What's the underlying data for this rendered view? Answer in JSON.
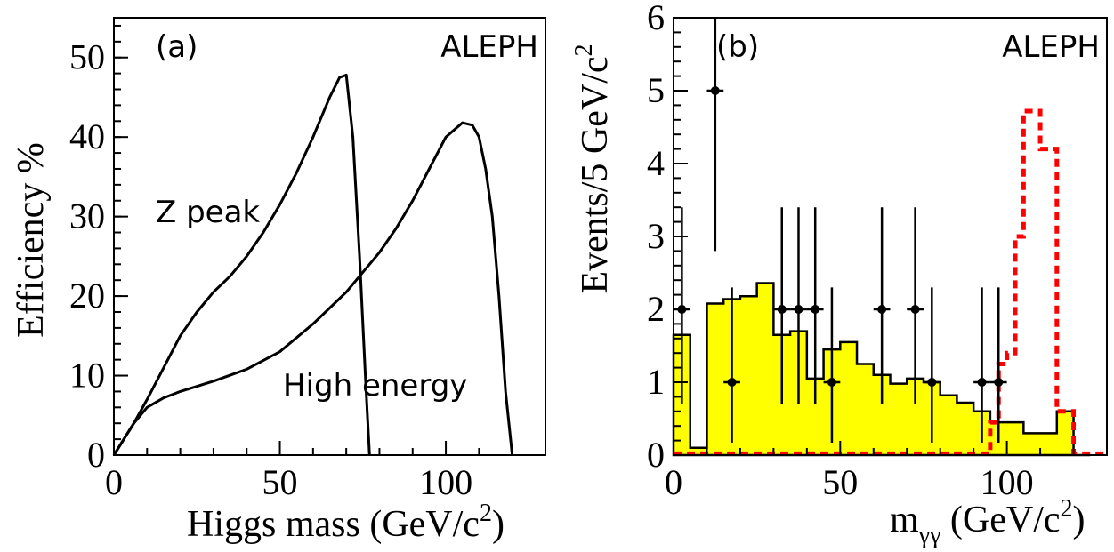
{
  "chart_data": [
    {
      "panel": "(a)",
      "type": "line",
      "brand": "ALEPH",
      "xlabel": "Higgs mass (GeV/c",
      "xlabel_sup": "2",
      "xlabel_close": ")",
      "ylabel": "Efficiency %",
      "xlim": [
        0,
        130
      ],
      "ylim": [
        0,
        55
      ],
      "xticks": [
        0,
        50,
        100
      ],
      "xtick_labels": [
        "0",
        "50",
        "100"
      ],
      "yticks": [
        0,
        10,
        20,
        30,
        40,
        50
      ],
      "ytick_labels": [
        "0",
        "10",
        "20",
        "30",
        "40",
        "50"
      ],
      "grid": false,
      "series": [
        {
          "name": "Z peak",
          "color": "#000000",
          "x": [
            0,
            3,
            6,
            10,
            15,
            20,
            25,
            30,
            35,
            40,
            45,
            50,
            55,
            60,
            65,
            68,
            70,
            72,
            74,
            76,
            77
          ],
          "y": [
            0,
            2,
            4,
            7,
            11,
            15,
            18,
            20.5,
            22.5,
            25,
            28,
            31.5,
            35.5,
            40,
            45,
            47.5,
            47.8,
            40,
            25,
            8,
            0
          ]
        },
        {
          "name": "High energy",
          "color": "#000000",
          "x": [
            0,
            3,
            6,
            10,
            15,
            20,
            30,
            40,
            50,
            60,
            70,
            80,
            85,
            90,
            95,
            100,
            105,
            108,
            110,
            112,
            114,
            116,
            118,
            120
          ],
          "y": [
            0,
            2,
            4,
            6,
            7.2,
            8,
            9.3,
            10.8,
            13,
            16.5,
            20.5,
            25.5,
            28.5,
            32,
            36,
            40,
            41.8,
            41.5,
            40,
            36,
            30,
            20,
            8,
            0
          ]
        }
      ]
    },
    {
      "panel": "(b)",
      "type": "bar",
      "brand": "ALEPH",
      "xlabel": "m",
      "xlabel_sub": "γγ",
      "xlabel_rest": " (GeV/c",
      "xlabel_sup": "2",
      "xlabel_close": ")",
      "ylabel": "Events/5 GeV/c",
      "ylabel_sup": "2",
      "xlim": [
        0,
        130
      ],
      "ylim": [
        0,
        6
      ],
      "xticks": [
        0,
        50,
        100
      ],
      "xtick_labels": [
        "0",
        "50",
        "100"
      ],
      "yticks": [
        0,
        1,
        2,
        3,
        4,
        5,
        6
      ],
      "ytick_labels": [
        "0",
        "1",
        "2",
        "3",
        "4",
        "5",
        "6"
      ],
      "grid": false,
      "bin_width": 5,
      "background_histogram": {
        "color": "#ffff00",
        "bin_edges": [
          0,
          5,
          10,
          15,
          20,
          25,
          30,
          35,
          40,
          45,
          50,
          55,
          60,
          65,
          70,
          75,
          80,
          85,
          90,
          95,
          100,
          105,
          110,
          115,
          120,
          125
        ],
        "values": [
          1.65,
          0.1,
          2.08,
          2.14,
          2.18,
          2.36,
          1.65,
          1.7,
          1.05,
          1.45,
          1.55,
          1.25,
          1.1,
          0.98,
          1.05,
          1.0,
          0.82,
          0.72,
          0.6,
          0.45,
          0.45,
          0.3,
          0.3,
          0.6,
          0.0
        ]
      },
      "signal_histogram": {
        "color": "#ff0000",
        "bin_edges": [
          95,
          97.5,
          100,
          102.5,
          105,
          107.5,
          110,
          112.5,
          115,
          117.5,
          120
        ],
        "values": [
          0.45,
          1.25,
          1.4,
          3.0,
          4.72,
          4.72,
          4.2,
          4.2,
          0.6,
          0.6
        ]
      },
      "data_points": {
        "color": "#000000",
        "x": [
          2.5,
          12.5,
          17.5,
          32.5,
          37.5,
          42.5,
          47.5,
          62.5,
          72.5,
          77.5,
          92.5,
          97.5
        ],
        "y": [
          2,
          5,
          1,
          2,
          2,
          2,
          1,
          2,
          2,
          1,
          1,
          1
        ]
      }
    }
  ]
}
